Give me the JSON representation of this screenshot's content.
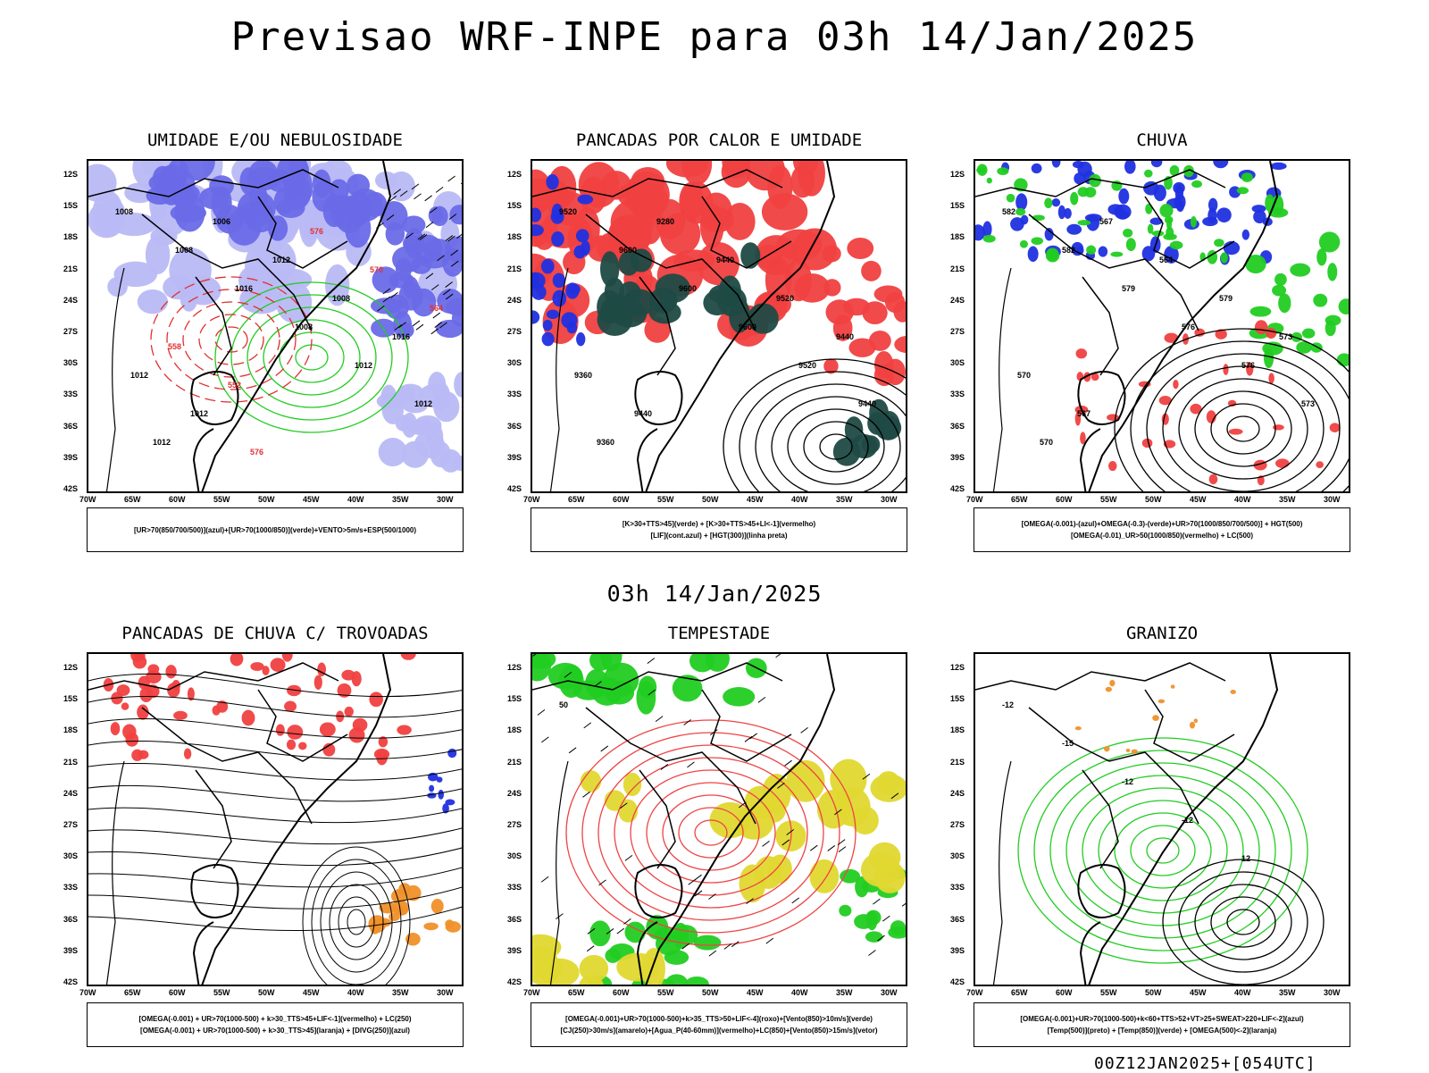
{
  "title": "Previsao WRF-INPE  para 03h 14/Jan/2025",
  "mid_title": "03h 14/Jan/2025",
  "footer": "00Z12JAN2025+[054UTC]",
  "lat_labels": [
    "12S",
    "15S",
    "18S",
    "21S",
    "24S",
    "27S",
    "30S",
    "33S",
    "36S",
    "39S",
    "42S"
  ],
  "lon_labels": [
    "70W",
    "65W",
    "60W",
    "55W",
    "50W",
    "45W",
    "40W",
    "35W",
    "30W"
  ],
  "colors": {
    "purple": "#6a6ae8",
    "lavender": "#b9b9f5",
    "green": "#22cc22",
    "red": "#f04040",
    "darkteal": "#1f4a44",
    "blue": "#2030e0",
    "orange": "#f0902a",
    "yellow": "#e0d830",
    "black": "#000000"
  },
  "panels": [
    {
      "title": "UMIDADE E/OU NEBULOSIDADE",
      "legend": [
        "[UR>70(850/700/500)](azul)+[UR>70(1000/850)](verde)+VENTO>5m/s+ESP(500/1000)"
      ],
      "contour_labels": [
        "1008",
        "1008",
        "1016",
        "1008",
        "1012",
        "1012",
        "1012",
        "1006",
        "1012",
        "1008",
        "1016",
        "1012",
        "1012",
        "576",
        "576",
        "570",
        "564",
        "558",
        "552"
      ]
    },
    {
      "title": "PANCADAS POR CALOR E UMIDADE",
      "legend": [
        "[K>30+TTS>45](verde) + [K>30+TTS>45+LI<-1](vermelho)",
        "[LIF](cont.azul) + [HGT(300)](linha preta)"
      ],
      "contour_labels": [
        "9520",
        "9600",
        "9600",
        "9600",
        "9520",
        "9440",
        "9360",
        "9280",
        "9440",
        "9520",
        "9440",
        "9360",
        "9440"
      ]
    },
    {
      "title": "CHUVA",
      "legend": [
        "[OMEGA(-0.001)-(azul)+OMEGA(-0.3)-(verde)+UR>70(1000/850/700/500)] + HGT(500)",
        "[OMEGA(-0.01)_UR>50(1000/850)(vermelho) + LC(500)"
      ],
      "contour_labels": [
        "582",
        "582",
        "579",
        "576",
        "576",
        "573",
        "570",
        "567",
        "564",
        "579",
        "573",
        "570",
        "567"
      ]
    },
    {
      "title": "PANCADAS DE CHUVA C/ TROVOADAS",
      "legend": [
        "[OMEGA(-0.001) + UR>70(1000-500) + k>30_TTS>45+LIF<-1](vermelho) + LC(250)",
        "[OMEGA(-0.001) + UR>70(1000-500) + k>30_TTS>45](laranja) + [DIVG(250)](azul)"
      ],
      "contour_labels": []
    },
    {
      "title": "TEMPESTADE",
      "legend": [
        "[OMEGA(-0.001)+UR>70(1000-500)+k>35_TTS>50+LIF<-4](roxo)+[Vento(850)>10m/s](verde)",
        "[CJ(250)>30m/s](amarelo)+[Agua_P(40-60mm)](vermelho)+LC(850)+[Vento(850)>15m/s](vetor)"
      ],
      "contour_labels": [
        "50"
      ]
    },
    {
      "title": "GRANIZO",
      "legend": [
        "[OMEGA(-0.001)+UR>70(1000-500)+k<60+TTS>52+VT>25+SWEAT>220+LIF<-2](azul)",
        "[Temp(500)](preto) + [Temp(850)](verde) + [OMEGA(500)<-2](laranja)"
      ],
      "contour_labels": [
        "-12",
        "-15",
        "-12",
        "-12",
        "12"
      ]
    }
  ]
}
